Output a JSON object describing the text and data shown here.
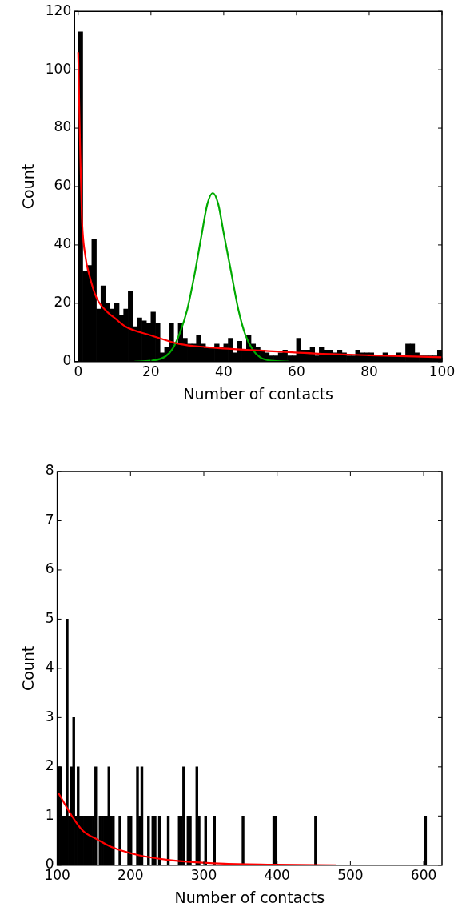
{
  "chart_data": [
    {
      "type": "histogram",
      "xlabel": "Number of contacts",
      "ylabel": "Count",
      "color": "#000000",
      "bins": [
        0,
        1.25,
        2.5,
        3.75,
        5,
        6.25,
        7.5,
        8.75,
        10,
        11.25,
        12.5,
        13.75,
        15,
        16.25,
        17.5,
        18.75,
        20,
        21.25,
        22.5,
        23.75,
        25,
        26.25,
        27.5,
        28.75,
        30,
        31.25,
        32.5,
        33.75,
        35,
        36.25,
        37.5,
        38.75,
        40,
        41.25,
        42.5,
        43.75,
        45,
        46.25,
        47.5,
        48.75,
        50,
        51.25,
        52.5,
        53.75,
        55,
        56.25,
        57.5,
        58.75,
        60,
        61.25,
        62.5,
        63.75,
        65,
        66.25,
        67.5,
        68.75,
        70,
        71.25,
        72.5,
        73.75,
        75,
        76.25,
        77.5,
        78.75,
        80,
        81.25,
        82.5,
        83.75,
        85,
        86.25,
        87.5,
        88.75,
        90,
        91.25,
        92.5,
        93.75,
        95,
        96.25,
        97.5,
        98.75,
        100
      ],
      "values": [
        113,
        31,
        33,
        42,
        18,
        26,
        20,
        18,
        20,
        16,
        18,
        24,
        12,
        15,
        14,
        13,
        17,
        13,
        3,
        5,
        13,
        6,
        13,
        8,
        6,
        6,
        9,
        6,
        5,
        5,
        6,
        5,
        6,
        8,
        3,
        7,
        4,
        9,
        6,
        5,
        4,
        3,
        2,
        2,
        3,
        4,
        2,
        2,
        8,
        4,
        4,
        5,
        2,
        5,
        4,
        4,
        3,
        4,
        3,
        2,
        2,
        4,
        3,
        3,
        3,
        2,
        2,
        3,
        2,
        2,
        3,
        2,
        6,
        6,
        3,
        2,
        2,
        2,
        2,
        4
      ],
      "series": [
        {
          "type": "line",
          "color": "#ff0000",
          "x": [
            0,
            0.5,
            1,
            2,
            3,
            5,
            8,
            10,
            13,
            20,
            28,
            35,
            50,
            65,
            80,
            100
          ],
          "values": [
            106,
            75,
            50,
            36,
            30,
            22,
            17,
            15,
            12,
            9,
            6,
            5,
            3.8,
            2.8,
            2.2,
            1.5
          ]
        },
        {
          "type": "line",
          "color": "#00aa00",
          "x": [
            15.5,
            20,
            24,
            26,
            28,
            30,
            32,
            34,
            35.5,
            37,
            38.5,
            40,
            42,
            44,
            46,
            48,
            50,
            53,
            58
          ],
          "values": [
            0,
            0.3,
            1.8,
            4.5,
            10,
            18,
            30,
            44,
            54,
            57.8,
            54,
            44,
            31,
            18,
            9,
            4,
            1.5,
            0.3,
            0
          ]
        }
      ],
      "xlim": [
        -1,
        100
      ],
      "xticks": [
        0,
        20,
        40,
        60,
        80,
        100
      ],
      "ylim": [
        0,
        120
      ],
      "yticks": [
        0,
        20,
        40,
        60,
        80,
        100,
        120
      ]
    },
    {
      "type": "histogram",
      "xlabel": "Number of contacts",
      "ylabel": "Count",
      "color": "#000000",
      "bins": [
        100,
        103,
        106,
        109,
        112,
        115,
        118,
        121,
        124,
        127,
        130,
        133,
        136,
        139,
        142,
        145,
        148,
        151,
        154,
        157,
        160,
        163,
        166,
        169,
        172,
        175,
        178,
        181,
        184,
        187,
        190,
        193,
        196,
        199,
        202,
        205,
        208,
        211,
        214,
        217,
        220,
        223,
        226,
        229,
        232,
        235,
        238,
        241,
        244,
        247,
        250,
        253,
        256,
        259,
        262,
        265,
        268,
        271,
        274,
        277,
        280,
        283,
        286,
        289,
        292,
        295,
        298,
        301,
        304,
        307,
        310,
        313,
        316,
        319,
        322,
        325,
        328,
        331,
        334,
        337,
        340,
        343,
        346,
        349,
        352,
        355,
        358,
        361,
        364,
        367,
        370,
        373,
        376,
        379,
        382,
        385,
        388,
        391,
        394,
        397,
        400,
        403,
        406,
        409,
        412,
        415,
        418,
        421,
        424,
        427,
        430,
        433,
        436,
        439,
        442,
        445,
        448,
        451,
        454,
        457,
        460,
        463,
        466,
        469,
        472,
        475,
        478,
        481,
        484,
        487,
        490,
        493,
        496,
        499,
        502,
        505,
        508,
        511,
        514,
        517,
        520,
        523,
        526,
        529,
        532,
        535,
        538,
        541,
        544,
        547,
        550,
        553,
        556,
        559,
        562,
        565,
        568,
        571,
        574,
        577,
        580,
        583,
        586,
        589,
        592,
        595,
        598,
        601,
        604,
        607,
        610,
        613,
        616,
        619,
        622,
        625
      ],
      "values": [
        2,
        2,
        1,
        1,
        5,
        1,
        2,
        3,
        1,
        2,
        1,
        1,
        1,
        1,
        1,
        1,
        1,
        2,
        0,
        1,
        1,
        1,
        1,
        2,
        1,
        1,
        0,
        0,
        1,
        0,
        0,
        0,
        1,
        1,
        0,
        0,
        2,
        1,
        2,
        0,
        0,
        1,
        0,
        1,
        1,
        0,
        1,
        0,
        0,
        0,
        1,
        0,
        0,
        0,
        0,
        1,
        1,
        2,
        0,
        1,
        1,
        0,
        0,
        2,
        1,
        0,
        0,
        1,
        0,
        0,
        0,
        1,
        0,
        0,
        0,
        0,
        0,
        0,
        0,
        0,
        0,
        0,
        0,
        0,
        1,
        0,
        0,
        0,
        0,
        0,
        0,
        0,
        0,
        0,
        0,
        0,
        0,
        0,
        1,
        1,
        0,
        0,
        0,
        0,
        0,
        0,
        0,
        0,
        0,
        0,
        0,
        0,
        0,
        0,
        0,
        0,
        0,
        1,
        0,
        0,
        0,
        0,
        0,
        0,
        0,
        0,
        0,
        0,
        0,
        0,
        0,
        0,
        0,
        0,
        0,
        0,
        0,
        0,
        0,
        0,
        0,
        0,
        0,
        0,
        0,
        0,
        0,
        0,
        0,
        0,
        0,
        0,
        0,
        0,
        0,
        0,
        0,
        0,
        0,
        0,
        0,
        0,
        0,
        0,
        0,
        0,
        0,
        1,
        0,
        0,
        0,
        0,
        0,
        0,
        0
      ],
      "series": [
        {
          "type": "line",
          "color": "#ff0000",
          "x": [
            101.5,
            120,
            135,
            155,
            174,
            212,
            251,
            289,
            328,
            400,
            480
          ],
          "values": [
            1.47,
            1.0,
            0.7,
            0.52,
            0.37,
            0.2,
            0.11,
            0.06,
            0.03,
            0.01,
            0
          ]
        }
      ],
      "xlim": [
        100,
        625
      ],
      "xticks": [
        100,
        200,
        300,
        400,
        500,
        600
      ],
      "ylim": [
        0,
        8
      ],
      "yticks": [
        0,
        1,
        2,
        3,
        4,
        5,
        6,
        7,
        8
      ]
    }
  ]
}
